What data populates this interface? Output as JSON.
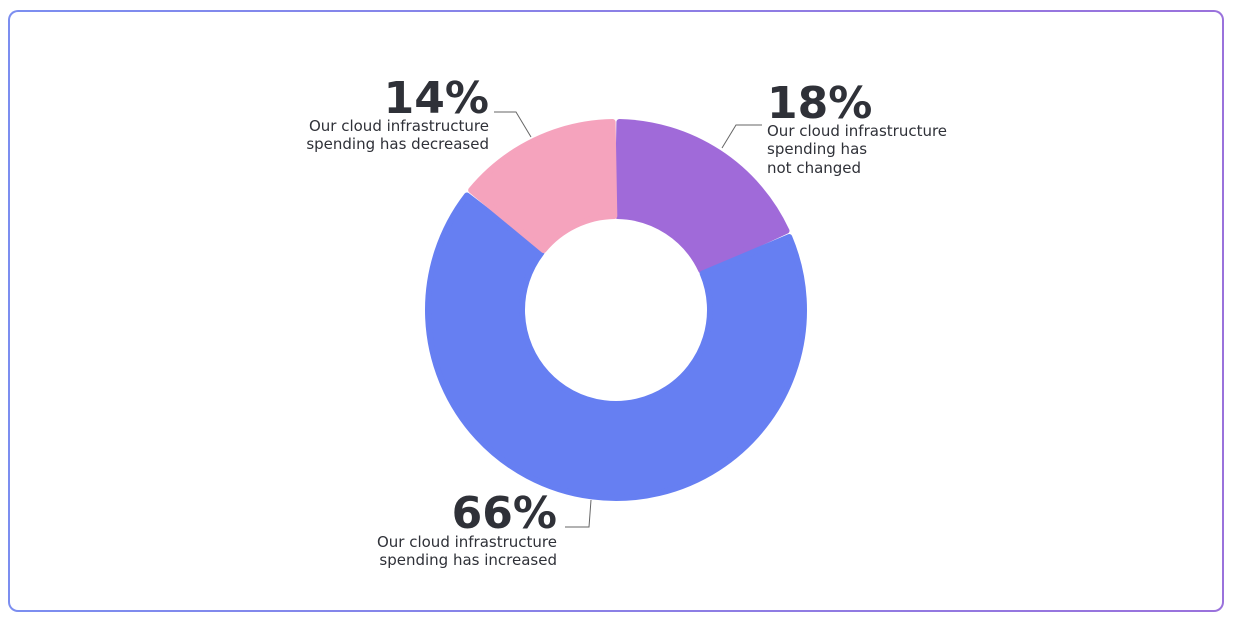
{
  "chart_data": {
    "type": "pie",
    "donut": true,
    "categories": [
      "Our cloud infrastructure spending has not changed",
      "Our cloud infrastructure spending has increased",
      "Our cloud infrastructure spending has decreased"
    ],
    "values": [
      18,
      66,
      14
    ],
    "colors": [
      "#a06ad9",
      "#667ff2",
      "#f5a3bd"
    ],
    "labels": [
      {
        "value": "18%",
        "lines": [
          "Our cloud infrastructure",
          "spending has",
          "not changed"
        ]
      },
      {
        "value": "66%",
        "lines": [
          "Our cloud infrastructure",
          "spending has increased"
        ]
      },
      {
        "value": "14%",
        "lines": [
          "Our cloud infrastructure",
          "spending has decreased"
        ]
      }
    ],
    "legend": "none"
  }
}
